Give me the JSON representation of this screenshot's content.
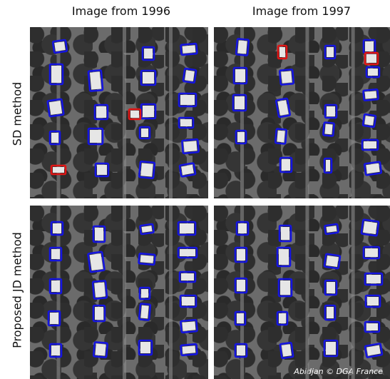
{
  "columns": [
    "Image from 1996",
    "Image from 1997"
  ],
  "rows": [
    "SD method",
    "Proposed JD method"
  ],
  "credit": "Abidjan © DGA France",
  "colors": {
    "detection_box": "#1515e0",
    "error_box": "#e01515"
  },
  "panels": [
    {
      "name": "sd-1996",
      "boxes": [
        [
          75,
          57,
          18,
          16,
          -8,
          "b"
        ],
        [
          70,
          90,
          18,
          28,
          0,
          "b"
        ],
        [
          125,
          99,
          18,
          28,
          -5,
          "b"
        ],
        [
          68,
          140,
          20,
          22,
          -8,
          "b"
        ],
        [
          133,
          147,
          18,
          20,
          0,
          "b"
        ],
        [
          70,
          184,
          14,
          18,
          0,
          "b"
        ],
        [
          124,
          180,
          20,
          22,
          0,
          "b"
        ],
        [
          72,
          232,
          20,
          12,
          0,
          "r"
        ],
        [
          134,
          229,
          18,
          18,
          0,
          "b"
        ],
        [
          200,
          66,
          16,
          18,
          0,
          "b"
        ],
        [
          254,
          62,
          22,
          14,
          -5,
          "b"
        ],
        [
          198,
          99,
          20,
          20,
          0,
          "b"
        ],
        [
          258,
          97,
          16,
          18,
          8,
          "b"
        ],
        [
          198,
          146,
          20,
          20,
          0,
          "b"
        ],
        [
          181,
          153,
          16,
          14,
          0,
          "r"
        ],
        [
          196,
          178,
          14,
          16,
          0,
          "b"
        ],
        [
          196,
          227,
          20,
          22,
          5,
          "b"
        ],
        [
          251,
          131,
          24,
          18,
          0,
          "b"
        ],
        [
          251,
          165,
          20,
          14,
          0,
          "b"
        ],
        [
          256,
          196,
          22,
          18,
          -5,
          "b"
        ],
        [
          253,
          230,
          20,
          16,
          -10,
          "b"
        ]
      ]
    },
    {
      "name": "sd-1997",
      "boxes": [
        [
          332,
          55,
          16,
          22,
          5,
          "b"
        ],
        [
          390,
          64,
          12,
          18,
          0,
          "r"
        ],
        [
          456,
          64,
          14,
          18,
          0,
          "b"
        ],
        [
          510,
          56,
          16,
          18,
          0,
          "b"
        ],
        [
          512,
          74,
          18,
          16,
          0,
          "r"
        ],
        [
          514,
          94,
          18,
          14,
          0,
          "b"
        ],
        [
          328,
          95,
          18,
          22,
          0,
          "b"
        ],
        [
          393,
          98,
          18,
          20,
          -5,
          "b"
        ],
        [
          510,
          126,
          20,
          14,
          -5,
          "b"
        ],
        [
          327,
          133,
          18,
          22,
          0,
          "b"
        ],
        [
          389,
          139,
          16,
          24,
          -10,
          "b"
        ],
        [
          456,
          147,
          16,
          18,
          0,
          "b"
        ],
        [
          510,
          161,
          16,
          16,
          8,
          "b"
        ],
        [
          331,
          183,
          14,
          18,
          0,
          "b"
        ],
        [
          387,
          181,
          14,
          20,
          5,
          "b"
        ],
        [
          454,
          172,
          14,
          18,
          5,
          "b"
        ],
        [
          508,
          196,
          22,
          14,
          0,
          "b"
        ],
        [
          393,
          221,
          16,
          20,
          0,
          "b"
        ],
        [
          455,
          222,
          10,
          20,
          0,
          "b"
        ],
        [
          512,
          228,
          22,
          16,
          -8,
          "b"
        ]
      ]
    },
    {
      "name": "jd-1996",
      "boxes": [
        [
          72,
          311,
          16,
          18,
          0,
          "b"
        ],
        [
          131,
          317,
          16,
          22,
          0,
          "b"
        ],
        [
          197,
          315,
          18,
          12,
          -8,
          "b"
        ],
        [
          250,
          311,
          24,
          18,
          0,
          "b"
        ],
        [
          70,
          347,
          16,
          18,
          0,
          "b"
        ],
        [
          125,
          354,
          20,
          26,
          -8,
          "b"
        ],
        [
          195,
          356,
          22,
          14,
          5,
          "b"
        ],
        [
          250,
          347,
          26,
          14,
          0,
          "b"
        ],
        [
          70,
          391,
          16,
          20,
          0,
          "b"
        ],
        [
          131,
          394,
          18,
          24,
          -5,
          "b"
        ],
        [
          196,
          403,
          14,
          16,
          0,
          "b"
        ],
        [
          252,
          381,
          22,
          14,
          0,
          "b"
        ],
        [
          68,
          436,
          16,
          20,
          0,
          "b"
        ],
        [
          131,
          428,
          16,
          22,
          0,
          "b"
        ],
        [
          196,
          426,
          14,
          22,
          5,
          "b"
        ],
        [
          253,
          414,
          22,
          16,
          0,
          "b"
        ],
        [
          70,
          482,
          16,
          18,
          0,
          "b"
        ],
        [
          132,
          480,
          18,
          20,
          5,
          "b"
        ],
        [
          195,
          477,
          18,
          20,
          0,
          "b"
        ],
        [
          254,
          449,
          22,
          16,
          -5,
          "b"
        ],
        [
          254,
          483,
          22,
          14,
          -5,
          "b"
        ]
      ]
    },
    {
      "name": "jd-1997",
      "boxes": [
        [
          332,
          311,
          16,
          18,
          0,
          "b"
        ],
        [
          392,
          316,
          16,
          22,
          0,
          "b"
        ],
        [
          456,
          315,
          18,
          12,
          -8,
          "b"
        ],
        [
          508,
          309,
          22,
          20,
          8,
          "b"
        ],
        [
          330,
          347,
          16,
          20,
          0,
          "b"
        ],
        [
          389,
          347,
          18,
          26,
          0,
          "b"
        ],
        [
          456,
          357,
          20,
          18,
          8,
          "b"
        ],
        [
          510,
          346,
          22,
          16,
          0,
          "b"
        ],
        [
          330,
          390,
          16,
          20,
          0,
          "b"
        ],
        [
          391,
          391,
          18,
          24,
          0,
          "b"
        ],
        [
          456,
          393,
          16,
          20,
          0,
          "b"
        ],
        [
          512,
          383,
          24,
          16,
          0,
          "b"
        ],
        [
          330,
          437,
          14,
          18,
          0,
          "b"
        ],
        [
          389,
          437,
          14,
          18,
          0,
          "b"
        ],
        [
          456,
          428,
          14,
          20,
          0,
          "b"
        ],
        [
          513,
          414,
          20,
          16,
          0,
          "b"
        ],
        [
          330,
          482,
          16,
          18,
          0,
          "b"
        ],
        [
          394,
          481,
          16,
          20,
          -8,
          "b"
        ],
        [
          455,
          477,
          18,
          22,
          0,
          "b"
        ],
        [
          512,
          451,
          20,
          14,
          0,
          "b"
        ],
        [
          513,
          483,
          22,
          16,
          -10,
          "b"
        ]
      ]
    }
  ]
}
